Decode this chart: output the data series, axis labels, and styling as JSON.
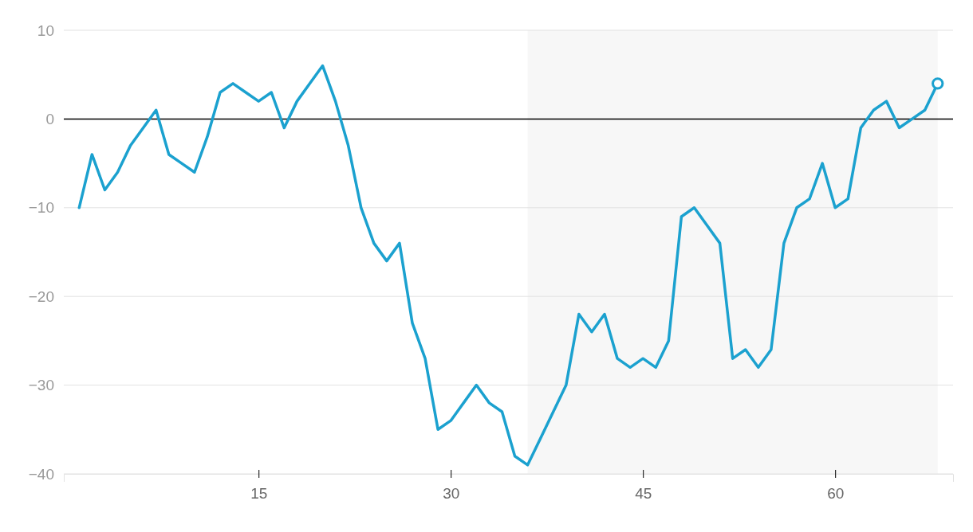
{
  "chart_data": {
    "type": "line",
    "x": [
      1,
      2,
      3,
      4,
      5,
      6,
      7,
      8,
      9,
      10,
      11,
      12,
      13,
      14,
      15,
      16,
      17,
      18,
      19,
      20,
      21,
      22,
      23,
      24,
      25,
      26,
      27,
      28,
      29,
      30,
      31,
      32,
      33,
      34,
      35,
      36,
      37,
      38,
      39,
      40,
      41,
      42,
      43,
      44,
      45,
      46,
      47,
      48,
      49,
      50,
      51,
      52,
      53,
      54,
      55,
      56,
      57,
      58,
      59,
      60,
      61,
      62,
      63,
      64,
      65,
      66,
      67,
      68
    ],
    "series": [
      {
        "color": "#1ba1cf",
        "marker": "none",
        "values": [
          -10,
          -4,
          -8,
          -6,
          -3,
          -1,
          1,
          -4,
          -5,
          -6,
          -2,
          3,
          4,
          3,
          2,
          3,
          -1,
          2,
          4,
          6,
          2,
          -3,
          -10,
          -14,
          -16,
          -14,
          -23,
          -27,
          -35,
          -34,
          -32,
          -30,
          -32,
          -33,
          -38,
          -39,
          -36,
          -33,
          -30,
          -22,
          -24,
          -22,
          -27,
          -28,
          -27,
          -28,
          -25,
          -11,
          -10,
          -12,
          -14,
          -27,
          -26,
          -28,
          -26,
          -14,
          -10,
          -9,
          -5,
          -10,
          -9,
          -1,
          1,
          2,
          -1,
          0,
          1,
          4
        ]
      },
      {
        "type": "scatter",
        "color": "#1ba1cf",
        "marker": "circle",
        "x": [
          68
        ],
        "values": [
          4
        ]
      }
    ],
    "xlim": [
      -0.2,
      69.2
    ],
    "xticks": [
      15,
      30,
      45,
      60
    ],
    "ylim": [
      -40,
      10
    ],
    "yticks": [
      {
        "value": -40,
        "label": "−40"
      },
      {
        "value": -30,
        "label": "−30"
      },
      {
        "value": -20,
        "label": "−20"
      },
      {
        "value": -10,
        "label": "−10"
      },
      0,
      10
    ],
    "grid": "y",
    "ref_lines": [
      {
        "axis": "y",
        "value": 0,
        "color": "#000000"
      }
    ],
    "bands": [
      {
        "axis": "x",
        "from": 36,
        "to": 68,
        "color": "#f7f7f7"
      }
    ]
  }
}
